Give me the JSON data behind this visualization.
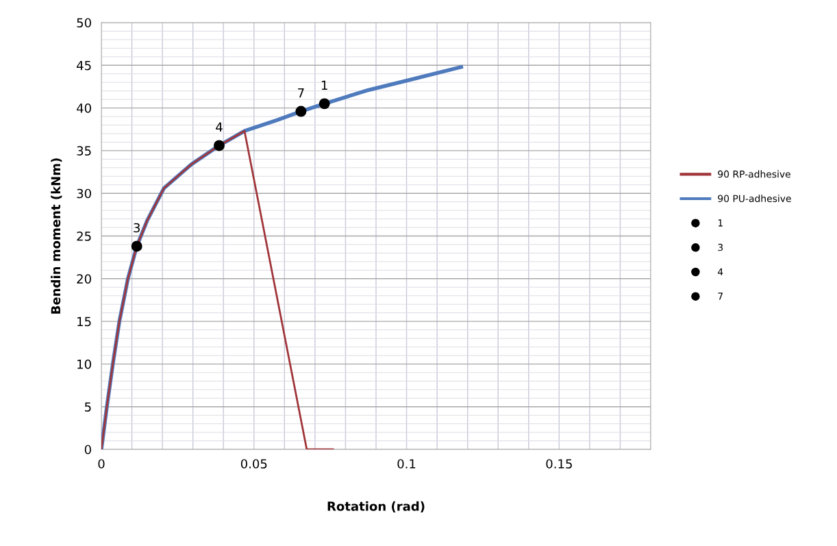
{
  "chart_data": {
    "type": "line",
    "xlabel": "Rotation (rad)",
    "ylabel": "Bendin moment (kNm)",
    "xlim": [
      0,
      0.18
    ],
    "ylim": [
      0,
      50
    ],
    "xticks": [
      0,
      {
        "value": 0.01,
        "label": null
      },
      {
        "value": 0.02,
        "label": null
      },
      {
        "value": 0.03,
        "label": null
      },
      {
        "value": 0.04,
        "label": null
      },
      0.05,
      {
        "value": 0.06,
        "label": null
      },
      {
        "value": 0.07,
        "label": null
      },
      {
        "value": 0.08,
        "label": null
      },
      {
        "value": 0.09,
        "label": null
      },
      0.1,
      {
        "value": 0.11,
        "label": null
      },
      {
        "value": 0.12,
        "label": null
      },
      {
        "value": 0.13,
        "label": null
      },
      {
        "value": 0.14,
        "label": null
      },
      0.15,
      {
        "value": 0.16,
        "label": null
      },
      {
        "value": 0.17,
        "label": null
      },
      {
        "value": 0.18,
        "label": null
      }
    ],
    "yticks": [
      0,
      {
        "value": 1,
        "label": null
      },
      {
        "value": 2,
        "label": null
      },
      {
        "value": 3,
        "label": null
      },
      {
        "value": 4,
        "label": null
      },
      5,
      {
        "value": 6,
        "label": null
      },
      {
        "value": 7,
        "label": null
      },
      {
        "value": 8,
        "label": null
      },
      {
        "value": 9,
        "label": null
      },
      10,
      {
        "value": 11,
        "label": null
      },
      {
        "value": 12,
        "label": null
      },
      {
        "value": 13,
        "label": null
      },
      {
        "value": 14,
        "label": null
      },
      15,
      {
        "value": 16,
        "label": null
      },
      {
        "value": 17,
        "label": null
      },
      {
        "value": 18,
        "label": null
      },
      {
        "value": 19,
        "label": null
      },
      20,
      {
        "value": 21,
        "label": null
      },
      {
        "value": 22,
        "label": null
      },
      {
        "value": 23,
        "label": null
      },
      {
        "value": 24,
        "label": null
      },
      25,
      {
        "value": 26,
        "label": null
      },
      {
        "value": 27,
        "label": null
      },
      {
        "value": 28,
        "label": null
      },
      {
        "value": 29,
        "label": null
      },
      30,
      {
        "value": 31,
        "label": null
      },
      {
        "value": 32,
        "label": null
      },
      {
        "value": 33,
        "label": null
      },
      {
        "value": 34,
        "label": null
      },
      35,
      {
        "value": 36,
        "label": null
      },
      {
        "value": 37,
        "label": null
      },
      {
        "value": 38,
        "label": null
      },
      {
        "value": 39,
        "label": null
      },
      40,
      {
        "value": 41,
        "label": null
      },
      {
        "value": 42,
        "label": null
      },
      {
        "value": 43,
        "label": null
      },
      {
        "value": 44,
        "label": null
      },
      45,
      {
        "value": 46,
        "label": null
      },
      {
        "value": 47,
        "label": null
      },
      {
        "value": 48,
        "label": null
      },
      {
        "value": 49,
        "label": null
      },
      50
    ],
    "grid": true,
    "legend": "right",
    "line_style": "solid",
    "series": [
      {
        "name": "90 RP-adhesive",
        "marker": "none",
        "color": "#a0353a",
        "x": [
          0,
          0.0018,
          0.0038,
          0.0059,
          0.0087,
          0.0116,
          0.015,
          0.0205,
          0.0295,
          0.0386,
          0.0469,
          0.0673,
          0.0759
        ],
        "values": [
          0,
          5,
          10.1,
          15,
          20,
          23.8,
          26.8,
          30.6,
          33.4,
          35.6,
          37.3,
          0,
          0
        ]
      },
      {
        "name": "90 PU-adhesive",
        "marker": "none",
        "color": "#4f7bbd",
        "x": [
          0,
          0.0018,
          0.0038,
          0.0059,
          0.0087,
          0.0116,
          0.015,
          0.0205,
          0.0295,
          0.0386,
          0.0469,
          0.0577,
          0.0654,
          0.0731,
          0.0875,
          0.1,
          0.1179
        ],
        "values": [
          0,
          5,
          10.1,
          15,
          20,
          23.8,
          26.8,
          30.6,
          33.4,
          35.6,
          37.3,
          38.6,
          39.6,
          40.5,
          42.1,
          43.2,
          44.8
        ]
      },
      {
        "name": "1",
        "type": "scatter",
        "marker": "circle",
        "color": "#000000",
        "x": [
          0.0731
        ],
        "values": [
          40.5
        ]
      },
      {
        "name": "3",
        "type": "scatter",
        "marker": "circle",
        "color": "#000000",
        "x": [
          0.0116
        ],
        "values": [
          23.8
        ]
      },
      {
        "name": "4",
        "type": "scatter",
        "marker": "circle",
        "color": "#000000",
        "x": [
          0.0386
        ],
        "values": [
          35.6
        ]
      },
      {
        "name": "7",
        "type": "scatter",
        "marker": "circle",
        "color": "#000000",
        "x": [
          0.0654
        ],
        "values": [
          39.6
        ]
      }
    ]
  }
}
